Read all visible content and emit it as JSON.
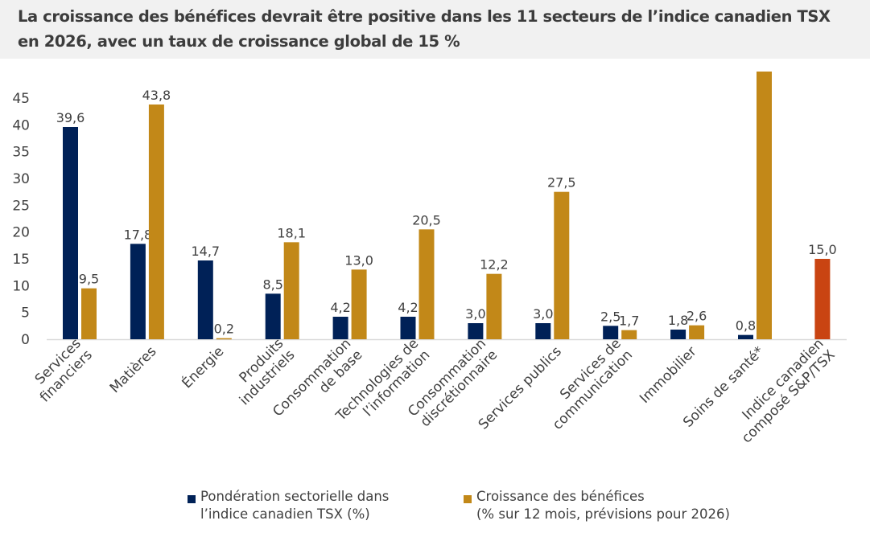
{
  "title_lines": [
    "La croissance des bénéfices devrait être positive dans les 11 secteurs de l’indice canadien TSX",
    "en 2026, avec un taux de croissance global de 15 %"
  ],
  "chart_data": {
    "type": "bar",
    "title": "La croissance des bénéfices devrait être positive dans les 11 secteurs de l’indice canadien TSX en 2026, avec un taux de croissance global de 15 %",
    "xlabel": "",
    "ylabel": "",
    "ylim": [
      0,
      50
    ],
    "yticks": [
      0,
      5,
      10,
      15,
      20,
      25,
      30,
      35,
      40,
      45
    ],
    "grid": false,
    "legend_position": "bottom",
    "categories": [
      [
        "Services",
        "financiers"
      ],
      [
        "Matières"
      ],
      [
        "Énergie"
      ],
      [
        "Produits",
        "industriels"
      ],
      [
        "Consommation",
        "de base"
      ],
      [
        "Technologies de",
        "l’information"
      ],
      [
        "Consommation",
        "discrétionnaire"
      ],
      [
        "Services publics"
      ],
      [
        "Services de",
        "communication"
      ],
      [
        "Immobilier"
      ],
      [
        "Soins de santé*"
      ],
      [
        "Indice canadien",
        "composé S&P/TSX"
      ]
    ],
    "series": [
      {
        "name": "Pondération sectorielle dans l’indice canadien TSX (%)",
        "color": "#002157",
        "values": [
          39.6,
          17.8,
          14.7,
          8.5,
          4.2,
          4.2,
          3.0,
          3.0,
          2.5,
          1.8,
          0.8,
          null
        ],
        "labels": [
          "39,6",
          "17,8",
          "14,7",
          "8,5",
          "4,2",
          "4,2",
          "3,0",
          "3,0",
          "2,5",
          "1,8",
          "0,8",
          ""
        ]
      },
      {
        "name": "Croissance des bénéfices (% sur 12 mois, prévisions pour 2026)",
        "color": "#c28818",
        "values": [
          9.5,
          43.8,
          0.2,
          18.1,
          13.0,
          20.5,
          12.2,
          27.5,
          1.7,
          2.6,
          50,
          15.0
        ],
        "labels": [
          "9,5",
          "43,8",
          "0,2",
          "18,1",
          "13,0",
          "20,5",
          "12,2",
          "27,5",
          "1,7",
          "2,6",
          "",
          "15,0"
        ],
        "note": "Soins de santé bar extends beyond the top of the axis; no label shown",
        "point_colors": {
          "11": "#c94412"
        }
      }
    ]
  },
  "legend": [
    {
      "lines": [
        "Pondération sectorielle dans",
        "l’indice canadien TSX (%)"
      ],
      "color": "#002157"
    },
    {
      "lines": [
        "Croissance des bénéfices",
        "(% sur 12 mois, prévisions pour 2026)"
      ],
      "color": "#c28818"
    }
  ]
}
